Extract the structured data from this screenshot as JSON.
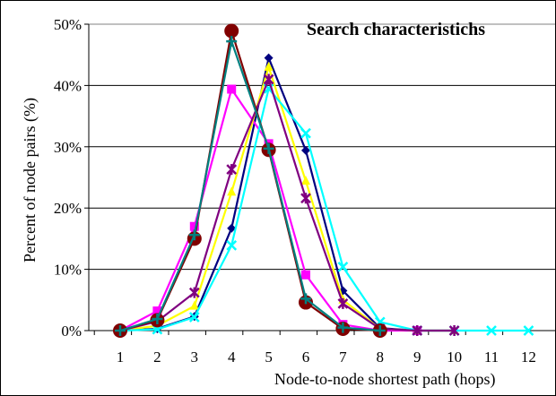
{
  "chart_data": {
    "type": "line",
    "title": "Search characteristichs",
    "xlabel": "Node-to-node shortest path (hops)",
    "ylabel": "Percent of node pairs (%)",
    "x": [
      1,
      2,
      3,
      4,
      5,
      6,
      7,
      8,
      9,
      10,
      11,
      12
    ],
    "x_tick_labels": [
      "1",
      "2",
      "3",
      "4",
      "5",
      "6",
      "7",
      "8",
      "9",
      "10",
      "11",
      "12"
    ],
    "ylim": [
      0,
      50
    ],
    "y_ticks": [
      0,
      10,
      20,
      30,
      40,
      50
    ],
    "y_tick_labels": [
      "0%",
      "10%",
      "20%",
      "30%",
      "40%",
      "50%"
    ],
    "grid": "horizontal",
    "legend": "none",
    "series": [
      {
        "color": "#000080",
        "marker": "diamond",
        "values": [
          0,
          0.3,
          2.3,
          16.7,
          44.5,
          29.4,
          6.5,
          0.4,
          0,
          0,
          null,
          null
        ]
      },
      {
        "color": "#FF00FF",
        "marker": "square",
        "values": [
          0,
          3.2,
          17,
          39.4,
          30.5,
          9.1,
          1,
          0,
          0,
          null,
          null,
          null
        ]
      },
      {
        "color": "#FFFF00",
        "marker": "triangle",
        "values": [
          0,
          0.8,
          4,
          22.6,
          43,
          24.4,
          5,
          0.3,
          0,
          0,
          null,
          null
        ]
      },
      {
        "color": "#00FFFF",
        "marker": "x",
        "values": [
          0,
          0.2,
          2.2,
          13.9,
          39.5,
          32.2,
          10.4,
          1.4,
          0,
          0,
          0,
          0
        ]
      },
      {
        "color": "#800080",
        "marker": "star",
        "values": [
          0,
          1.5,
          6.2,
          26.3,
          41,
          21.6,
          4.4,
          0.3,
          0,
          0,
          null,
          null
        ]
      },
      {
        "color": "#800000",
        "marker": "circle",
        "values": [
          0,
          1.7,
          15,
          48.9,
          29.5,
          4.6,
          0.3,
          0,
          null,
          null,
          null,
          null
        ]
      },
      {
        "color": "#008080",
        "marker": "plus",
        "values": [
          0,
          1.9,
          15.6,
          47.2,
          29.7,
          5.2,
          0.5,
          0,
          null,
          null,
          null,
          null
        ]
      }
    ]
  }
}
